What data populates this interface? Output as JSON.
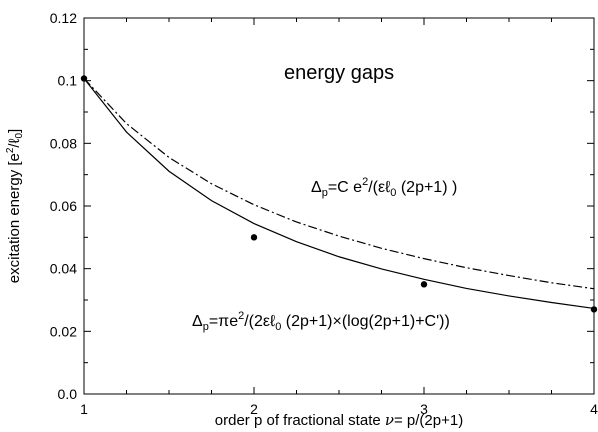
{
  "chart_data": {
    "type": "line",
    "title": "",
    "xlabel": {
      "prefix": "order p of fractional state ",
      "nu": "ν",
      "suffix": "= p/(2p+1)"
    },
    "ylabel": {
      "prefix": "excitation energy [e",
      "sup": "2",
      "mid": "/ℓ",
      "sub": "0",
      "suffix": "]"
    },
    "xlim": [
      1,
      4
    ],
    "ylim": [
      0,
      0.12
    ],
    "xticks": [
      1,
      2,
      3,
      4
    ],
    "yticks": [
      0.0,
      0.02,
      0.04,
      0.06,
      0.08,
      0.1,
      0.12
    ],
    "ytick_labels": [
      "0.0",
      "0.02",
      "0.04",
      "0.06",
      "0.08",
      "0.1",
      "0.12"
    ],
    "xtick_labels": [
      "1",
      "2",
      "3",
      "4"
    ],
    "grid": false,
    "series": [
      {
        "style": "dash-dot",
        "x": [
          1,
          1.25,
          1.5,
          1.75,
          2,
          2.25,
          2.5,
          2.75,
          3,
          3.25,
          3.5,
          3.75,
          4
        ],
        "y": [
          0.1007,
          0.0863,
          0.0755,
          0.0671,
          0.0604,
          0.0549,
          0.0504,
          0.0465,
          0.0432,
          0.0403,
          0.0378,
          0.0355,
          0.0336
        ]
      },
      {
        "style": "solid",
        "x": [
          1,
          1.25,
          1.5,
          1.75,
          2,
          2.25,
          2.5,
          2.75,
          3,
          3.25,
          3.5,
          3.75,
          4
        ],
        "y": [
          0.1007,
          0.0836,
          0.0711,
          0.0617,
          0.0544,
          0.0486,
          0.0438,
          0.0399,
          0.0366,
          0.0337,
          0.0313,
          0.0292,
          0.0273
        ]
      },
      {
        "style": "points",
        "x": [
          1,
          2,
          3,
          4
        ],
        "y": [
          0.1007,
          0.05,
          0.035,
          0.027
        ]
      }
    ],
    "annotations": {
      "title_text": "energy gaps",
      "formula1": {
        "delta": "Δ",
        "sub": "p",
        "a": "=C e",
        "sup": "2",
        "b": "/(εℓ",
        "sub2": "0",
        "c": " (2p+1) )"
      },
      "formula2": {
        "delta": "Δ",
        "sub": "p",
        "a": "=πe",
        "sup": "2",
        "b": "/(2εℓ",
        "sub2": "0",
        "c": " (2p+1)×(log(2p+1)+C'))"
      }
    }
  }
}
